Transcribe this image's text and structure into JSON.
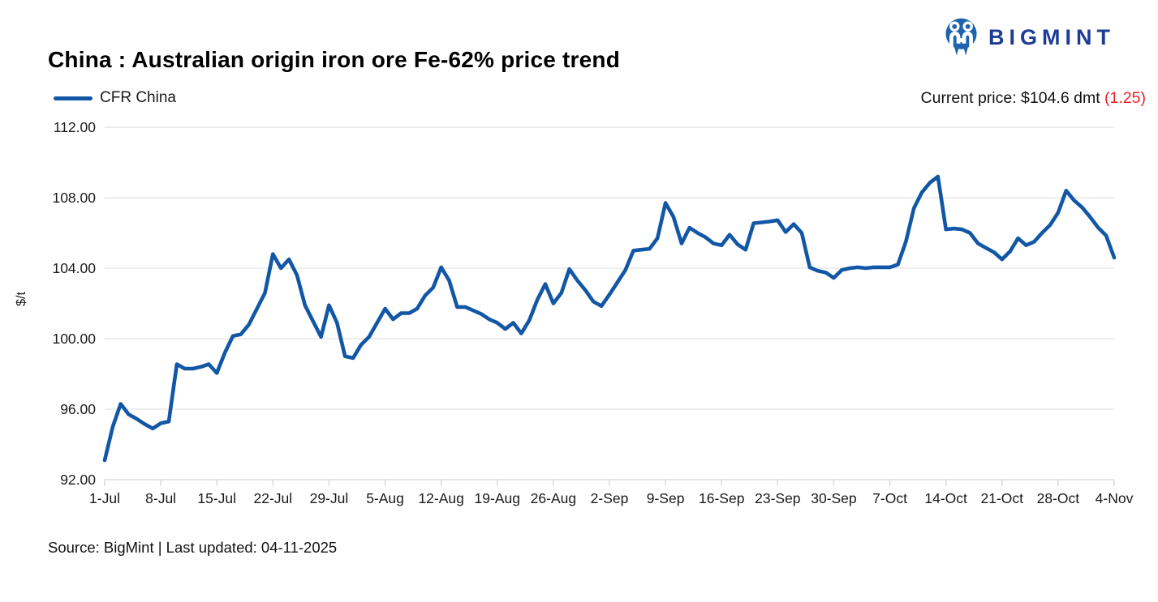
{
  "header": {
    "title": "China : Australian origin iron ore Fe-62% price trend",
    "legend_label": "CFR China",
    "brand": "BIGMINT",
    "current_price": {
      "prefix": "Current price: $104.6 dmt ",
      "change": "(1.25)"
    }
  },
  "footer": {
    "source": "Source: BigMint | Last updated: 04-11-2025"
  },
  "colors": {
    "line_blue": "#1257a6",
    "brand_navy": "#1e3c96",
    "logo_blue": "#1d63ae",
    "negative_red": "#ee1d23",
    "grid_gray": "#e3e3e3",
    "axis_gray": "#d4d4d4",
    "text_dark": "#1a1a1a"
  },
  "chart_data": {
    "type": "line",
    "title": "China : Australian origin iron ore Fe-62% price trend",
    "ylabel": "$/t",
    "xlabel": "",
    "ylim": [
      92,
      112
    ],
    "grid": "horizontal",
    "legend_position": "top-left",
    "frequency": "daily",
    "x_start": "1-Jul",
    "x_end": "4-Nov",
    "y_ticks": [
      {
        "label": "112.00",
        "value": 112
      },
      {
        "label": "108.00",
        "value": 108
      },
      {
        "label": "104.00",
        "value": 104
      },
      {
        "label": "100.00",
        "value": 100
      },
      {
        "label": "96.00",
        "value": 96
      },
      {
        "label": "92.00",
        "value": 92
      }
    ],
    "x_ticks": [
      {
        "label": "1-Jul",
        "index": 0
      },
      {
        "label": "8-Jul",
        "index": 7
      },
      {
        "label": "15-Jul",
        "index": 14
      },
      {
        "label": "22-Jul",
        "index": 21
      },
      {
        "label": "29-Jul",
        "index": 28
      },
      {
        "label": "5-Aug",
        "index": 35
      },
      {
        "label": "12-Aug",
        "index": 42
      },
      {
        "label": "19-Aug",
        "index": 49
      },
      {
        "label": "26-Aug",
        "index": 56
      },
      {
        "label": "2-Sep",
        "index": 63
      },
      {
        "label": "9-Sep",
        "index": 70
      },
      {
        "label": "16-Sep",
        "index": 77
      },
      {
        "label": "23-Sep",
        "index": 84
      },
      {
        "label": "30-Sep",
        "index": 91
      },
      {
        "label": "7-Oct",
        "index": 98
      },
      {
        "label": "14-Oct",
        "index": 105
      },
      {
        "label": "21-Oct",
        "index": 112
      },
      {
        "label": "28-Oct",
        "index": 119
      },
      {
        "label": "4-Nov",
        "index": 126
      }
    ],
    "series": [
      {
        "name": "CFR China",
        "color": "#1257a6",
        "unit": "$/t",
        "current_value": 104.6,
        "change_display": "(1.25)",
        "values": [
          93.1,
          95.0,
          96.3,
          95.7,
          95.45,
          95.15,
          94.9,
          95.2,
          95.3,
          98.55,
          98.3,
          98.3,
          98.4,
          98.55,
          98.05,
          99.2,
          100.15,
          100.25,
          100.8,
          101.7,
          102.6,
          104.8,
          104.0,
          104.5,
          103.6,
          101.9,
          101.0,
          100.1,
          101.9,
          100.9,
          99.0,
          98.9,
          99.65,
          100.1,
          100.9,
          101.7,
          101.1,
          101.45,
          101.45,
          101.7,
          102.45,
          102.9,
          104.05,
          103.3,
          101.8,
          101.8,
          101.6,
          101.4,
          101.1,
          100.9,
          100.55,
          100.9,
          100.3,
          101.05,
          102.2,
          103.1,
          102.0,
          102.6,
          103.95,
          103.3,
          102.75,
          102.1,
          101.85,
          102.5,
          103.2,
          103.9,
          105.0,
          105.05,
          105.1,
          105.7,
          107.7,
          106.9,
          105.4,
          106.3,
          106.0,
          105.75,
          105.4,
          105.3,
          105.9,
          105.35,
          105.05,
          106.55,
          106.6,
          106.65,
          106.72,
          106.05,
          106.5,
          106.0,
          104.05,
          103.85,
          103.75,
          103.45,
          103.9,
          104.0,
          104.05,
          104.0,
          104.05,
          104.05,
          104.05,
          104.2,
          105.5,
          107.4,
          108.3,
          108.85,
          109.2,
          106.2,
          106.25,
          106.2,
          106.0,
          105.4,
          105.15,
          104.9,
          104.5,
          104.95,
          105.7,
          105.3,
          105.5,
          106.0,
          106.45,
          107.15,
          108.4,
          107.85,
          107.45,
          106.9,
          106.3,
          105.85,
          104.6
        ]
      }
    ]
  }
}
